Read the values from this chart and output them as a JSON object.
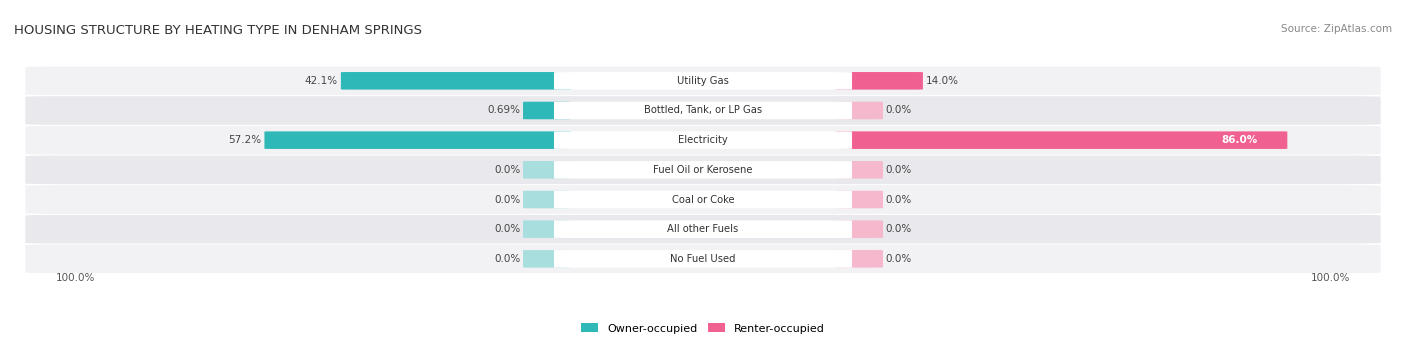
{
  "title": "HOUSING STRUCTURE BY HEATING TYPE IN DENHAM SPRINGS",
  "source": "Source: ZipAtlas.com",
  "categories": [
    "Utility Gas",
    "Bottled, Tank, or LP Gas",
    "Electricity",
    "Fuel Oil or Kerosene",
    "Coal or Coke",
    "All other Fuels",
    "No Fuel Used"
  ],
  "owner_values": [
    42.1,
    0.69,
    57.2,
    0.0,
    0.0,
    0.0,
    0.0
  ],
  "renter_values": [
    14.0,
    0.0,
    86.0,
    0.0,
    0.0,
    0.0,
    0.0
  ],
  "owner_color": "#2eb8b8",
  "renter_color": "#f06090",
  "owner_color_light": "#a8dede",
  "renter_color_light": "#f5b8cc",
  "row_bg_odd": "#f2f2f5",
  "row_bg_even": "#e8e8ed",
  "max_owner": 100.0,
  "max_renter": 100.0,
  "figsize": [
    14.06,
    3.41
  ],
  "dpi": 100,
  "legend_owner": "Owner-occupied",
  "legend_renter": "Renter-occupied",
  "bottom_left": "100.0%",
  "bottom_right": "100.0%"
}
